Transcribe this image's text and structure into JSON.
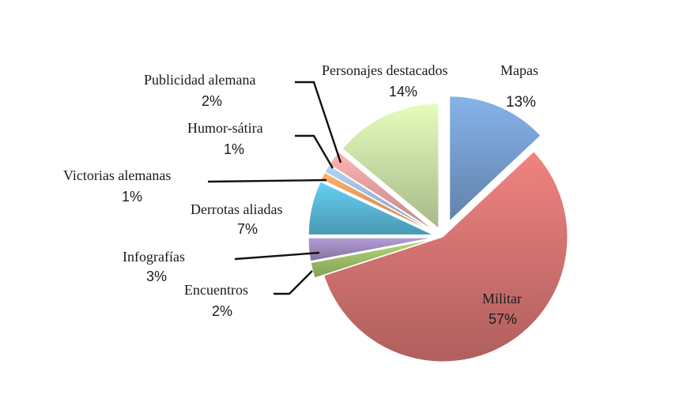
{
  "chart_data": {
    "type": "pie",
    "title": "",
    "slices": [
      {
        "label": "Mapas",
        "value": 13,
        "value_label": "13%",
        "color": "#7da7db"
      },
      {
        "label": "Militar",
        "value": 57,
        "value_label": "57%",
        "color": "#e07a78"
      },
      {
        "label": "Encuentros",
        "value": 2,
        "value_label": "2%",
        "color": "#a9cc6f"
      },
      {
        "label": "Infografías",
        "value": 3,
        "value_label": "3%",
        "color": "#a793c8"
      },
      {
        "label": "Derrotas aliadas",
        "value": 7,
        "value_label": "7%",
        "color": "#5fc3e4"
      },
      {
        "label": "Victorias alemanas",
        "value": 1,
        "value_label": "1%",
        "color": "#f3a566"
      },
      {
        "label": "Humor-sátira",
        "value": 1,
        "value_label": "1%",
        "color": "#a8c6e6"
      },
      {
        "label": "Publicidad alemana",
        "value": 2,
        "value_label": "2%",
        "color": "#f2a9a8"
      },
      {
        "label": "Personajes destacados",
        "value": 14,
        "value_label": "14%",
        "color": "#d6ecb0"
      }
    ],
    "legend": "none",
    "labels": "outside-with-leader-lines"
  }
}
